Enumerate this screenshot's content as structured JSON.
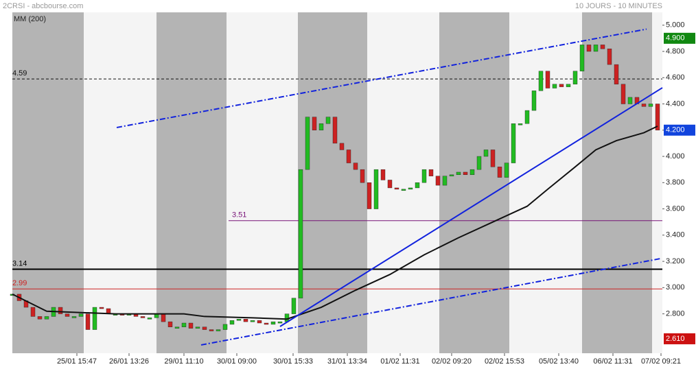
{
  "header": {
    "source": "2CRSI - abcbourse.com",
    "period": "10 JOURS - 10 MINUTES"
  },
  "chart_data": {
    "type": "candle-line",
    "ma_label": "MM (200)",
    "xlim": [
      0,
      95
    ],
    "xticks": [
      {
        "value": 9.4,
        "label": "25/01 15:47"
      },
      {
        "value": 17,
        "label": "26/01 13:26"
      },
      {
        "value": 25,
        "label": "29/01 11:10"
      },
      {
        "value": 32.7,
        "label": "30/01 09:00"
      },
      {
        "value": 40.9,
        "label": "30/01 15:33"
      },
      {
        "value": 48.8,
        "label": "31/01 13:34"
      },
      {
        "value": 56.5,
        "label": "01/02 11:31"
      },
      {
        "value": 64,
        "label": "02/02 09:20"
      },
      {
        "value": 71.7,
        "label": "02/02 15:53"
      },
      {
        "value": 79.6,
        "label": "05/02 13:40"
      },
      {
        "value": 87.5,
        "label": "06/02 11:31"
      },
      {
        "value": 94.5,
        "label": "07/02 09:21"
      }
    ],
    "ylim": [
      2.5,
      5.15
    ],
    "yticks": [
      {
        "value": 2.8,
        "label": "2.800"
      },
      {
        "value": 3.0,
        "label": "3.000"
      },
      {
        "value": 3.2,
        "label": "3.200"
      },
      {
        "value": 3.4,
        "label": "3.400"
      },
      {
        "value": 3.6,
        "label": "3.600"
      },
      {
        "value": 3.8,
        "label": "3.800"
      },
      {
        "value": 4.0,
        "label": "4.000"
      },
      {
        "value": 4.2,
        "label": "4.200"
      },
      {
        "value": 4.4,
        "label": "4.400"
      },
      {
        "value": 4.6,
        "label": "4.600"
      },
      {
        "value": 4.8,
        "label": "4.800"
      },
      {
        "value": 5.0,
        "label": "5.000"
      }
    ],
    "up_color": "#22bb22",
    "down_color": "#cc2222",
    "values": [
      2.95,
      2.9,
      2.85,
      2.78,
      2.76,
      2.78,
      2.85,
      2.8,
      2.78,
      2.78,
      2.8,
      2.68,
      2.85,
      2.84,
      2.8,
      2.8,
      2.79,
      2.8,
      2.78,
      2.77,
      2.77,
      2.8,
      2.74,
      2.7,
      2.7,
      2.73,
      2.69,
      2.7,
      2.68,
      2.67,
      2.68,
      2.72,
      2.75,
      2.76,
      2.74,
      2.75,
      2.73,
      2.72,
      2.74,
      2.74,
      2.8,
      2.92,
      3.9,
      4.3,
      4.2,
      4.25,
      4.3,
      4.1,
      4.05,
      3.95,
      3.9,
      3.8,
      3.6,
      3.9,
      3.82,
      3.76,
      3.75,
      3.75,
      3.76,
      3.8,
      3.9,
      3.85,
      3.78,
      3.85,
      3.86,
      3.88,
      3.86,
      3.9,
      4.0,
      4.05,
      3.92,
      3.84,
      3.95,
      4.25,
      4.25,
      4.35,
      4.5,
      4.65,
      4.52,
      4.55,
      4.53,
      4.55,
      4.65,
      4.85,
      4.8,
      4.85,
      4.82,
      4.7,
      4.55,
      4.4,
      4.45,
      4.4,
      4.38,
      4.4,
      4.2
    ],
    "ma": {
      "color": "#111111",
      "x": [
        0,
        5,
        15,
        25,
        28,
        35,
        40,
        45,
        50,
        55,
        60,
        65,
        70,
        75,
        78,
        82,
        85,
        88,
        92,
        94
      ],
      "values": [
        2.95,
        2.82,
        2.8,
        2.8,
        2.78,
        2.77,
        2.76,
        2.85,
        2.98,
        3.1,
        3.25,
        3.38,
        3.5,
        3.62,
        3.75,
        3.92,
        4.05,
        4.12,
        4.18,
        4.23
      ]
    },
    "levels": [
      {
        "value": 4.59,
        "color": "#111111",
        "style": "dashed"
      },
      {
        "value": 3.51,
        "color": "#771177",
        "style": "solid"
      },
      {
        "value": 3.14,
        "color": "#000000",
        "style": "thick"
      },
      {
        "value": 2.99,
        "color": "#cc2222",
        "style": "solid"
      }
    ],
    "trendlines": [
      {
        "x": [
          15.2,
          92.4
        ],
        "values": [
          4.22,
          4.97
        ],
        "color": "#1122dd",
        "style": "dashdot"
      },
      {
        "x": [
          27.5,
          94.4
        ],
        "values": [
          2.563,
          3.221
        ],
        "color": "#1122dd",
        "style": "dashdot"
      },
      {
        "x": [
          39,
          94.7
        ],
        "values": [
          2.704,
          4.523
        ],
        "color": "#1122dd",
        "style": "solid"
      }
    ],
    "price_tags": [
      {
        "value": 4.9,
        "label": "4.900",
        "color": "#118811"
      },
      {
        "value": 4.2,
        "label": "4.200",
        "color": "#1144dd"
      },
      {
        "value": 2.61,
        "label": "2.610",
        "color": "#cc1111"
      }
    ]
  }
}
